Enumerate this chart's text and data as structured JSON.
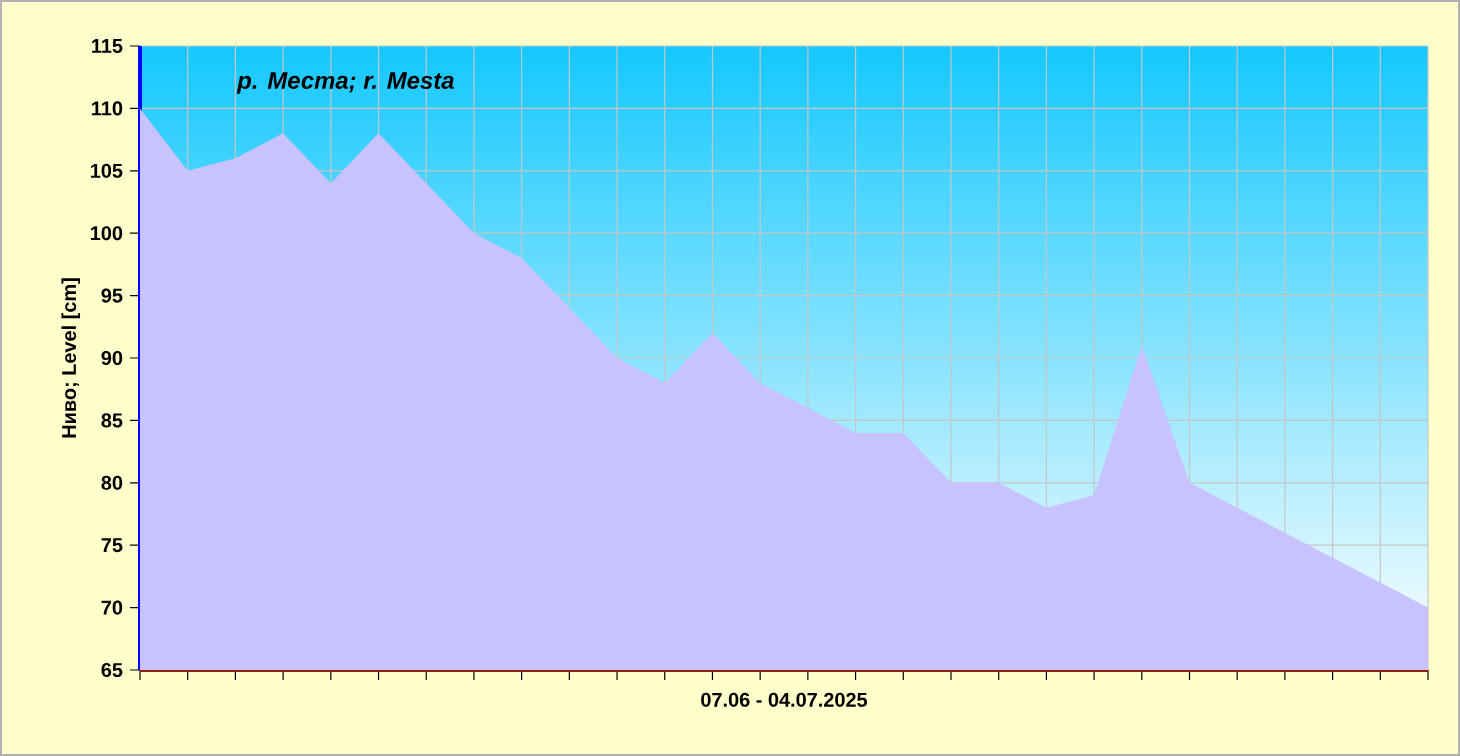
{
  "chart_data": {
    "type": "area",
    "title": "р. Места; r. Mesta",
    "xlabel": "07.06 - 04.07.2025",
    "ylabel": "Ниво; Level [cm]",
    "categories": [
      null,
      null,
      null,
      null,
      null,
      null,
      null,
      null,
      null,
      null,
      null,
      null,
      null,
      null,
      null,
      null,
      null,
      null,
      null,
      null,
      null,
      null,
      null,
      null,
      null,
      null,
      null,
      null
    ],
    "values": [
      110,
      105,
      106,
      108,
      104,
      108,
      104,
      100,
      98,
      94,
      90,
      88,
      92,
      88,
      86,
      84,
      84,
      80,
      80,
      78,
      79,
      91,
      80,
      78,
      76,
      74,
      72,
      70
    ],
    "color": "#c8c2ff",
    "ylim": [
      65,
      115
    ],
    "yticks": [
      65,
      70,
      75,
      80,
      85,
      90,
      95,
      100,
      105,
      110,
      115
    ],
    "grid": true
  }
}
